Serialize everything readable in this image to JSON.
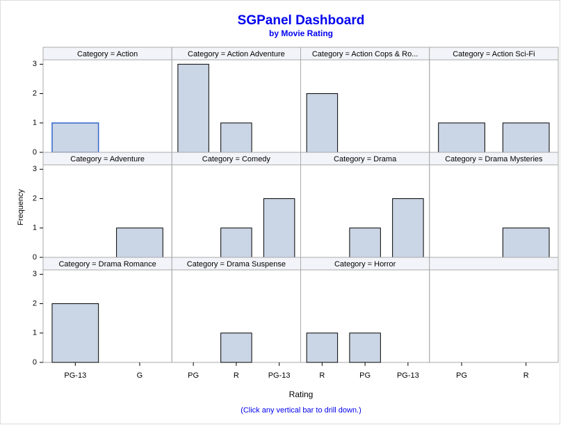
{
  "chart_data": {
    "type": "bar",
    "title": "SGPanel Dashboard",
    "subtitle": "by Movie Rating",
    "y_label": "Frequency",
    "x_label": "Rating",
    "footnote": "(Click any vertical bar to drill down.)",
    "color": "#cad5e5",
    "ylim": [
      0,
      3.15
    ],
    "yticks": [
      0,
      1,
      2,
      3
    ],
    "columns": [
      {
        "categories": [
          "PG-13",
          "G"
        ],
        "panels": [
          {
            "title": "Category = Action",
            "values": [
              1,
              null
            ]
          },
          {
            "title": "Category = Adventure",
            "values": [
              null,
              1
            ]
          },
          {
            "title": "Category = Drama Romance",
            "values": [
              2,
              null
            ]
          }
        ]
      },
      {
        "categories": [
          "PG",
          "R",
          "PG-13"
        ],
        "panels": [
          {
            "title": "Category = Action Adventure",
            "values": [
              3,
              1,
              null
            ]
          },
          {
            "title": "Category = Comedy",
            "values": [
              null,
              1,
              2
            ]
          },
          {
            "title": "Category = Drama Suspense",
            "values": [
              null,
              1,
              null
            ]
          }
        ]
      },
      {
        "categories": [
          "R",
          "PG",
          "PG-13"
        ],
        "panels": [
          {
            "title": "Category = Action Cops & Ro...",
            "values": [
              2,
              null,
              null
            ]
          },
          {
            "title": "Category = Drama",
            "values": [
              null,
              1,
              2
            ]
          },
          {
            "title": "Category = Horror",
            "values": [
              1,
              1,
              null
            ]
          }
        ]
      },
      {
        "categories": [
          "PG",
          "R"
        ],
        "panels": [
          {
            "title": "Category = Action Sci-Fi",
            "values": [
              1,
              1
            ]
          },
          {
            "title": "Category = Drama Mysteries",
            "values": [
              null,
              1
            ]
          }
        ]
      }
    ]
  }
}
